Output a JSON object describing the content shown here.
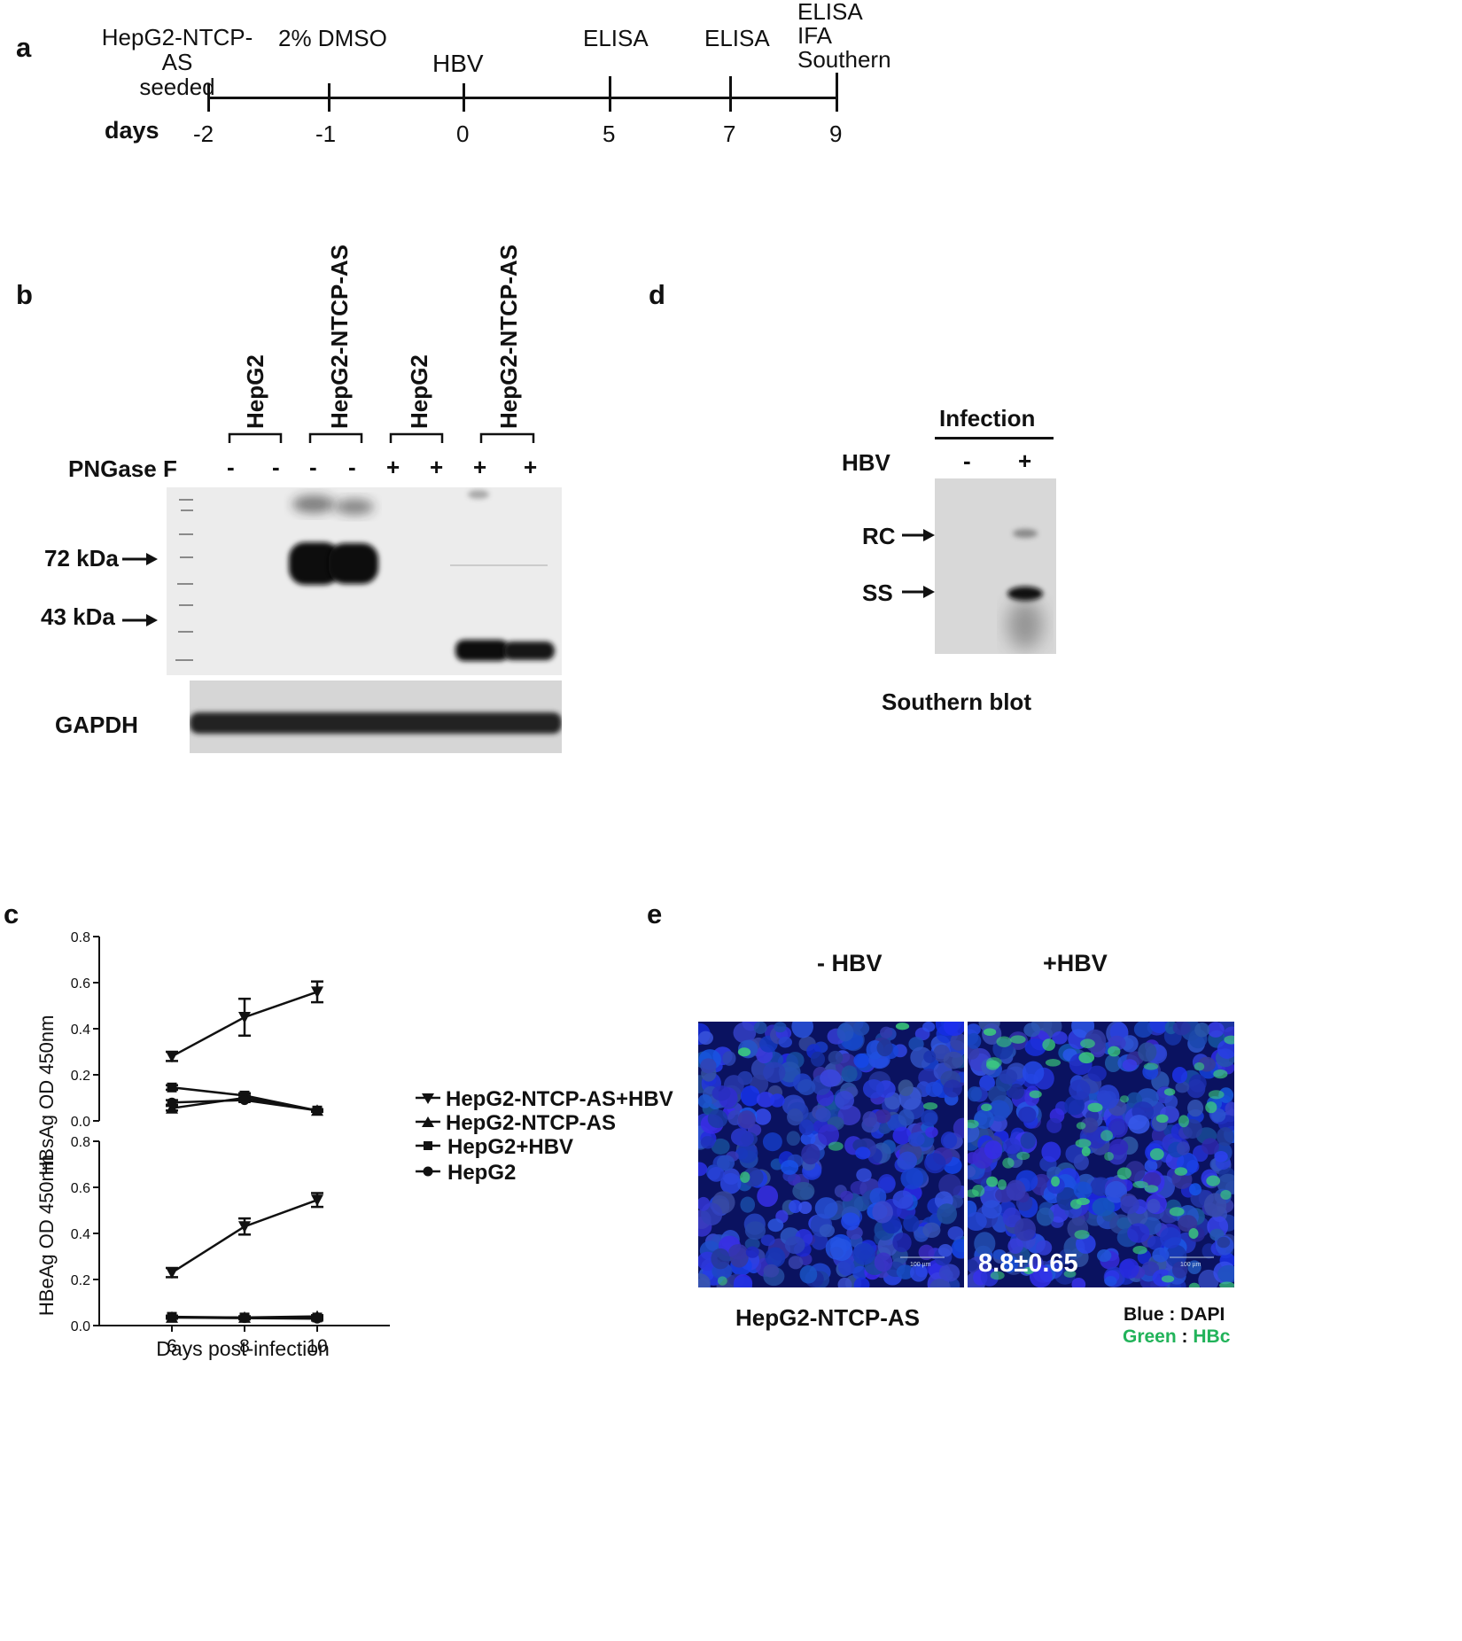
{
  "panel_a": {
    "label": "a",
    "events": [
      {
        "day": "-2",
        "text": [
          "HepG2-NTCP-AS",
          "seeded"
        ]
      },
      {
        "day": "-1",
        "text": [
          "2% DMSO"
        ]
      },
      {
        "day": "0",
        "text": [
          "HBV"
        ]
      },
      {
        "day": "5",
        "text": [
          "ELISA"
        ]
      },
      {
        "day": "7",
        "text": [
          "ELISA"
        ]
      },
      {
        "day": "9",
        "text": [
          "ELISA",
          "IFA",
          "Southern"
        ]
      }
    ],
    "axis_label": "days"
  },
  "panel_b": {
    "label": "b",
    "lane_groups": [
      "HepG2",
      "HepG2-NTCP-AS",
      "HepG2",
      "HepG2-NTCP-AS"
    ],
    "pngase_label": "PNGase F",
    "pngase_signs": [
      "-",
      "-",
      "-",
      "-",
      "+",
      "+",
      "+",
      "+"
    ],
    "markers": [
      "72 kDa",
      "43 kDa"
    ],
    "loading_control": "GAPDH"
  },
  "panel_d": {
    "label": "d",
    "header": "Infection",
    "hbv_label": "HBV",
    "signs": [
      "-",
      "+"
    ],
    "bands": [
      "RC",
      "SS"
    ],
    "caption": "Southern blot"
  },
  "panel_c": {
    "label": "c",
    "xlabel": "Days post-infection",
    "legend": [
      "HepG2-NTCP-AS+HBV",
      "HepG2-NTCP-AS",
      "HepG2+HBV",
      "HepG2"
    ]
  },
  "panel_e": {
    "label": "e",
    "col_labels": [
      "- HBV",
      "+HBV"
    ],
    "quant": "8.8±0.65",
    "cell_line": "HepG2-NTCP-AS",
    "scale_text": "100 µm",
    "legend_blue": "Blue : DAPI",
    "legend_green_prefix": "Green",
    "legend_green_sep": " : ",
    "legend_green_value": "HBc",
    "colors": {
      "blue": "#1a2fd6",
      "green": "#22b35a"
    }
  },
  "chart_data": [
    {
      "type": "line",
      "ylabel": "HBsAg OD 450nm",
      "xlabel": "",
      "x": [
        6,
        8,
        10
      ],
      "xlim": [
        4,
        12
      ],
      "ylim": [
        0,
        0.8
      ],
      "yticks": [
        "0.0",
        "0.2",
        "0.4",
        "0.6",
        "0.8"
      ],
      "series": [
        {
          "name": "HepG2-NTCP-AS+HBV",
          "marker": "triangle-down",
          "values": [
            0.28,
            0.45,
            0.56
          ],
          "errors": [
            0.02,
            0.08,
            0.045
          ]
        },
        {
          "name": "HepG2-NTCP-AS",
          "marker": "triangle-up",
          "values": [
            0.055,
            0.1,
            0.045
          ],
          "errors": [
            0.01,
            0.01,
            0.005
          ]
        },
        {
          "name": "HepG2+HBV",
          "marker": "square",
          "values": [
            0.145,
            0.11,
            0.045
          ],
          "errors": [
            0.01,
            0.01,
            0.005
          ]
        },
        {
          "name": "HepG2",
          "marker": "circle",
          "values": [
            0.08,
            0.09,
            0.045
          ],
          "errors": [
            0.01,
            0.005,
            0.005
          ]
        }
      ]
    },
    {
      "type": "line",
      "ylabel": "HBeAg OD 450nm",
      "xlabel": "Days post-infection",
      "x": [
        6,
        8,
        10
      ],
      "xlim": [
        4,
        12
      ],
      "ylim": [
        0,
        0.8
      ],
      "yticks": [
        "0.0",
        "0.2",
        "0.4",
        "0.6",
        "0.8"
      ],
      "xticks": [
        "6",
        "8",
        "10"
      ],
      "series": [
        {
          "name": "HepG2-NTCP-AS+HBV",
          "marker": "triangle-down",
          "values": [
            0.23,
            0.43,
            0.545
          ],
          "errors": [
            0.02,
            0.035,
            0.03
          ]
        },
        {
          "name": "HepG2-NTCP-AS",
          "marker": "triangle-up",
          "values": [
            0.035,
            0.035,
            0.04
          ],
          "errors": [
            0.005,
            0.005,
            0.005
          ]
        },
        {
          "name": "HepG2+HBV",
          "marker": "square",
          "values": [
            0.038,
            0.035,
            0.035
          ],
          "errors": [
            0.005,
            0.005,
            0.005
          ]
        },
        {
          "name": "HepG2",
          "marker": "circle",
          "values": [
            0.035,
            0.032,
            0.03
          ],
          "errors": [
            0.005,
            0.005,
            0.005
          ]
        }
      ]
    }
  ]
}
